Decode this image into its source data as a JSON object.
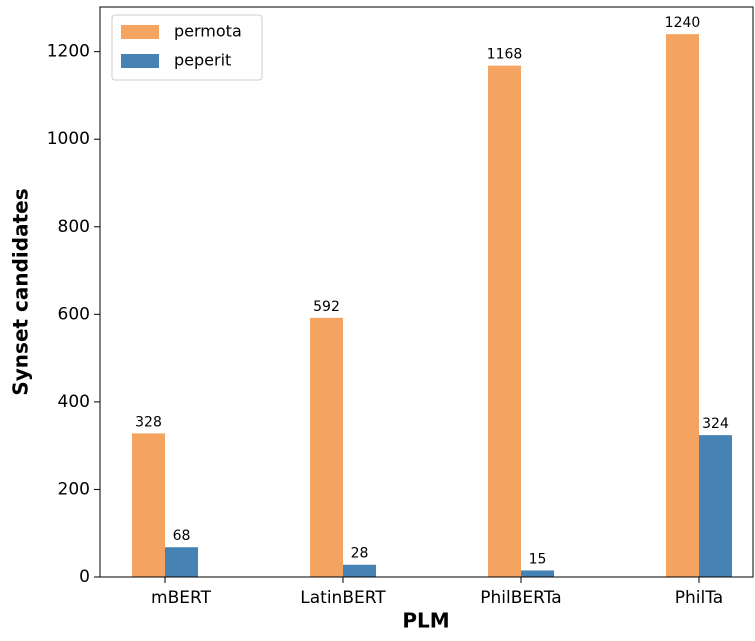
{
  "chart_data": {
    "type": "bar",
    "x_label": "PLM",
    "y_label": "Synset candidates",
    "categories": [
      "mBERT",
      "LatinBERT",
      "PhilBERTa",
      "PhilTa"
    ],
    "series": [
      {
        "name": "permota",
        "color": "#f4a460",
        "values": [
          328,
          592,
          1168,
          1240
        ]
      },
      {
        "name": "peperit",
        "color": "#4682b4",
        "values": [
          68,
          28,
          15,
          324
        ]
      }
    ],
    "ylim": [
      0,
      1302
    ],
    "yticks": [
      0,
      200,
      400,
      600,
      800,
      1000,
      1200
    ],
    "legend": "upper left"
  }
}
